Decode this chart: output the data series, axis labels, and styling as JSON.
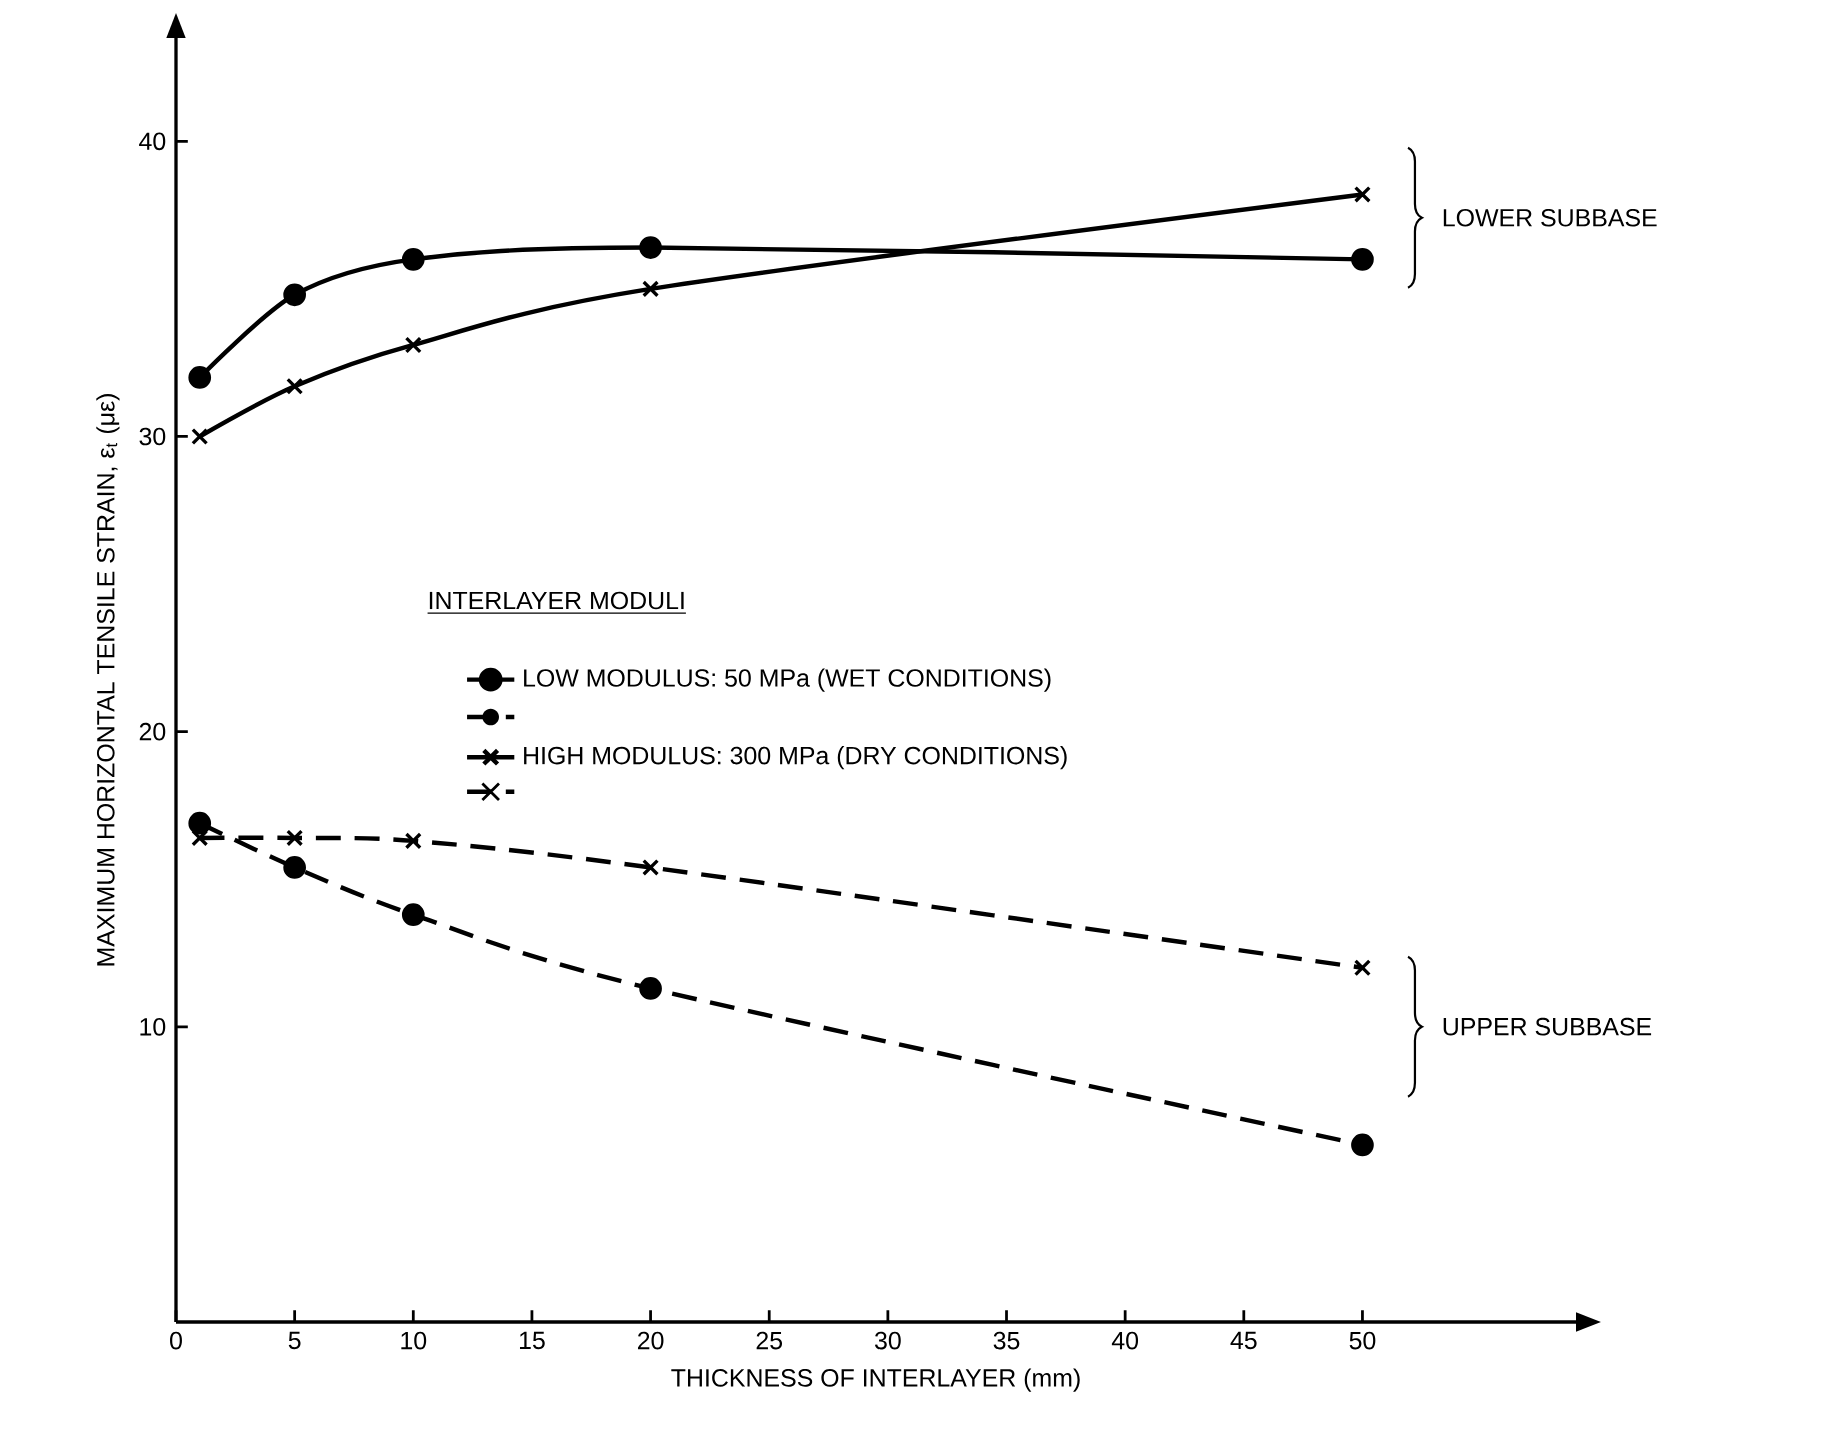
{
  "chart_data": {
    "type": "line",
    "xlabel": "THICKNESS OF INTERLAYER (mm)",
    "ylabel": "MAXIMUM HORIZONTAL TENSILE STRAIN, ε$_{t}$ (με)",
    "legend_title": "INTERLAYER MODULI",
    "legend": "center",
    "grid": false,
    "x": [
      1,
      5,
      10,
      20,
      50
    ],
    "xlim": [
      0,
      59
    ],
    "ylim": [
      0,
      43.5
    ],
    "xticks": [
      0,
      5,
      10,
      15,
      20,
      25,
      30,
      35,
      40,
      45,
      50
    ],
    "yticks": [
      10,
      20,
      30,
      40
    ],
    "series": [
      {
        "name": "LOW MODULUS: 50 MPa (WET CONDITIONS)",
        "color": "#000000",
        "marker": "circle",
        "line_style": "solid",
        "values": [
          32,
          34.8,
          36,
          36.4,
          36
        ]
      },
      {
        "color": "#000000",
        "marker": "circle",
        "line_style": "dashed",
        "values": [
          16.9,
          15.4,
          13.8,
          11.3,
          6
        ]
      },
      {
        "name": "HIGH MODULUS: 300 MPa (DRY CONDITIONS)",
        "color": "#000000",
        "marker": "cross",
        "line_style": "solid",
        "values": [
          30,
          31.7,
          33.1,
          35,
          38.2
        ]
      },
      {
        "color": "#000000",
        "marker": "cross",
        "line_style": "dashed",
        "values": [
          16.4,
          16.4,
          16.3,
          15.4,
          12
        ]
      }
    ],
    "annotations": [
      "LOWER SUBBASE",
      "UPPER SUBBASE"
    ]
  }
}
